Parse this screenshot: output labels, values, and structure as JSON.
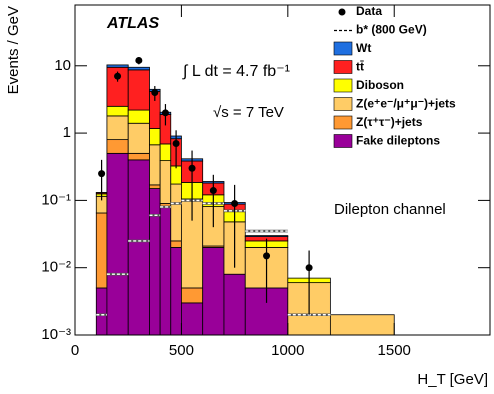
{
  "chart_data": {
    "type": "stacked_histogram",
    "title": "ATLAS",
    "annotations": [
      "∫ L dt = 4.7 fb⁻¹",
      "√s = 7 TeV",
      "Dilepton channel"
    ],
    "x_label": "H_T [GeV]",
    "y_label": "Events / GeV",
    "log_y": true,
    "bins": [
      100,
      150,
      250,
      350,
      400,
      450,
      500,
      600,
      700,
      800,
      1000,
      1200,
      1500
    ],
    "series": [
      {
        "name": "Wt",
        "color": "#1f6fe0",
        "values": [
          0.001,
          0.8,
          0.8,
          0.3,
          0.15,
          0.08,
          0.03,
          0.01,
          0.005,
          0.001,
          0,
          0
        ]
      },
      {
        "name": "tt̄",
        "color": "#ff2020",
        "values": [
          0.005,
          7.0,
          6.5,
          3.0,
          1.2,
          0.5,
          0.2,
          0.06,
          0.02,
          0.004,
          0,
          0
        ]
      },
      {
        "name": "Diboson",
        "color": "#ffff00",
        "values": [
          0.01,
          0.7,
          0.8,
          0.5,
          0.3,
          0.15,
          0.08,
          0.04,
          0.02,
          0.005,
          0.001,
          0
        ]
      },
      {
        "name": "Z(e⁺e⁻/μ⁺μ⁻)+jets",
        "color": "#ffcc66",
        "values": [
          0.05,
          1.0,
          0.9,
          0.5,
          0.3,
          0.15,
          0.1,
          0.06,
          0.04,
          0.015,
          0.006,
          0.002
        ]
      },
      {
        "name": "Z(τ⁺τ⁻)+jets",
        "color": "#ff9933",
        "values": [
          0.06,
          0.3,
          0.1,
          0.02,
          0.01,
          0.005,
          0.002,
          0.001,
          0,
          0,
          0,
          0
        ]
      },
      {
        "name": "Fake dileptons",
        "color": "#990099",
        "values": [
          0.005,
          0.5,
          0.4,
          0.15,
          0.08,
          0.02,
          0.003,
          0.02,
          0.008,
          0.005,
          0,
          0
        ]
      }
    ],
    "data": {
      "name": "Data",
      "color": "#000000",
      "values": [
        0.25,
        7,
        12,
        4,
        2,
        0.7,
        0.3,
        0.14,
        0.09,
        0.015,
        0.01,
        null
      ],
      "errors": [
        0.15,
        1.2,
        1.5,
        1,
        0.7,
        0.4,
        0.25,
        0.1,
        0.08,
        0.012,
        0.008,
        null
      ]
    },
    "signal": {
      "name": "b* (800 GeV)",
      "color": "#ffffff",
      "values": [
        0.002,
        0.008,
        0.025,
        0.06,
        0.08,
        0.09,
        0.1,
        0.09,
        0.07,
        0.035,
        0.002,
        null
      ]
    },
    "xlim": [
      0,
      1950
    ],
    "xticks": [
      0,
      500,
      1000,
      1500
    ],
    "ylim": [
      0.001,
      80
    ],
    "yticks": [
      {
        "value": 0.001,
        "label": "10⁻³"
      },
      {
        "value": 0.01,
        "label": "10⁻²"
      },
      {
        "value": 0.1,
        "label": "10⁻¹"
      },
      1,
      10
    ]
  }
}
